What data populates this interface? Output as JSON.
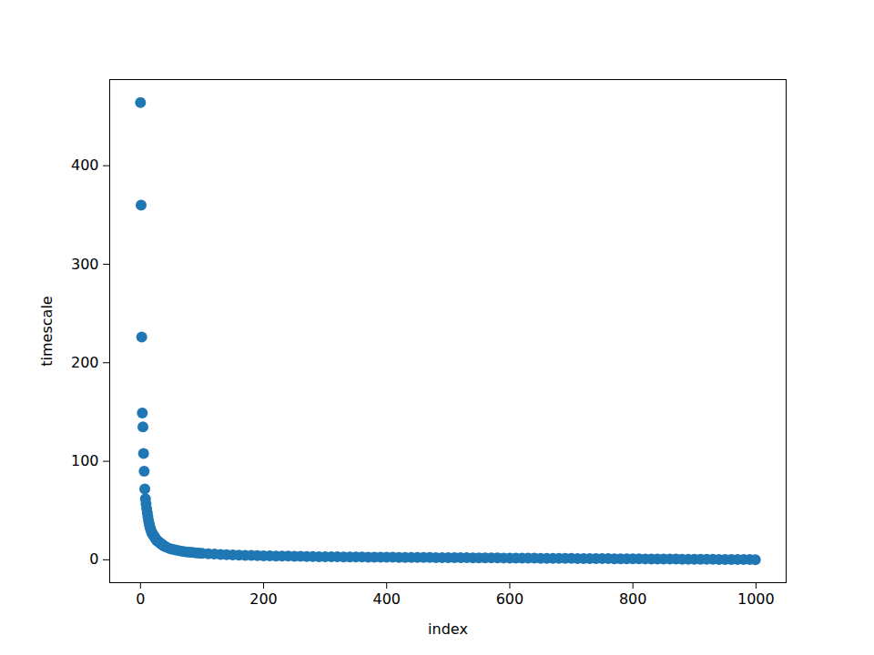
{
  "chart_data": {
    "type": "scatter",
    "x_label": "index",
    "y_label": "timescale",
    "color": "#1f77b4",
    "marker": "circle",
    "x": [
      0,
      1,
      2,
      3,
      4,
      5,
      6,
      7,
      8,
      9,
      10,
      11,
      12,
      13,
      14,
      15,
      16,
      17,
      18,
      19,
      20,
      21,
      22,
      23,
      24,
      25,
      26,
      27,
      28,
      29,
      30,
      31,
      32,
      33,
      34,
      35,
      36,
      37,
      38,
      39,
      40,
      45,
      50,
      55,
      60,
      65,
      70,
      75,
      80,
      85,
      90,
      95,
      100,
      110,
      120,
      130,
      140,
      150,
      160,
      170,
      180,
      190,
      200,
      210,
      220,
      230,
      240,
      250,
      260,
      270,
      280,
      290,
      300,
      310,
      320,
      330,
      340,
      350,
      360,
      370,
      380,
      390,
      400,
      410,
      420,
      430,
      440,
      450,
      460,
      470,
      480,
      490,
      500,
      510,
      520,
      530,
      540,
      550,
      560,
      570,
      580,
      590,
      600,
      610,
      620,
      630,
      640,
      650,
      660,
      670,
      680,
      690,
      700,
      710,
      720,
      730,
      740,
      750,
      760,
      770,
      780,
      790,
      800,
      810,
      820,
      830,
      840,
      850,
      860,
      870,
      880,
      890,
      900,
      910,
      920,
      930,
      940,
      950,
      960,
      970,
      980,
      990,
      999
    ],
    "values": [
      464,
      360,
      226,
      149,
      135,
      108,
      90,
      72,
      62,
      57,
      52,
      48,
      44,
      40,
      37,
      34,
      32,
      30,
      28,
      27,
      26,
      25,
      24,
      23,
      22,
      21,
      20,
      19.5,
      19,
      18.5,
      18,
      17.5,
      17,
      16.5,
      16,
      15.5,
      15,
      14.6,
      14.2,
      13.8,
      13.4,
      12,
      11,
      10.2,
      9.5,
      9,
      8.5,
      8,
      7.7,
      7.4,
      7.1,
      6.8,
      6.5,
      6.1,
      5.8,
      5.5,
      5.2,
      5,
      4.8,
      4.6,
      4.4,
      4.3,
      4.1,
      4,
      3.9,
      3.8,
      3.7,
      3.6,
      3.5,
      3.4,
      3.3,
      3.2,
      3.1,
      3.05,
      3.0,
      2.95,
      2.9,
      2.85,
      2.8,
      2.75,
      2.7,
      2.65,
      2.6,
      2.56,
      2.52,
      2.48,
      2.44,
      2.4,
      2.36,
      2.32,
      2.28,
      2.24,
      2.2,
      2.16,
      2.12,
      2.08,
      2.04,
      2.0,
      1.96,
      1.92,
      1.88,
      1.84,
      1.8,
      1.76,
      1.72,
      1.68,
      1.64,
      1.6,
      1.56,
      1.52,
      1.48,
      1.44,
      1.4,
      1.36,
      1.32,
      1.28,
      1.24,
      1.2,
      1.16,
      1.12,
      1.08,
      1.04,
      1.0,
      0.96,
      0.92,
      0.88,
      0.84,
      0.8,
      0.76,
      0.72,
      0.68,
      0.64,
      0.6,
      0.56,
      0.52,
      0.48,
      0.44,
      0.4,
      0.36,
      0.32,
      0.28,
      0.24,
      0.2
    ],
    "xlim": [
      -50,
      1049
    ],
    "ylim": [
      -23.2,
      487.4
    ],
    "xticks": [
      0,
      200,
      400,
      600,
      800,
      1000
    ],
    "yticks": [
      0,
      100,
      200,
      300,
      400
    ],
    "grid": false
  }
}
